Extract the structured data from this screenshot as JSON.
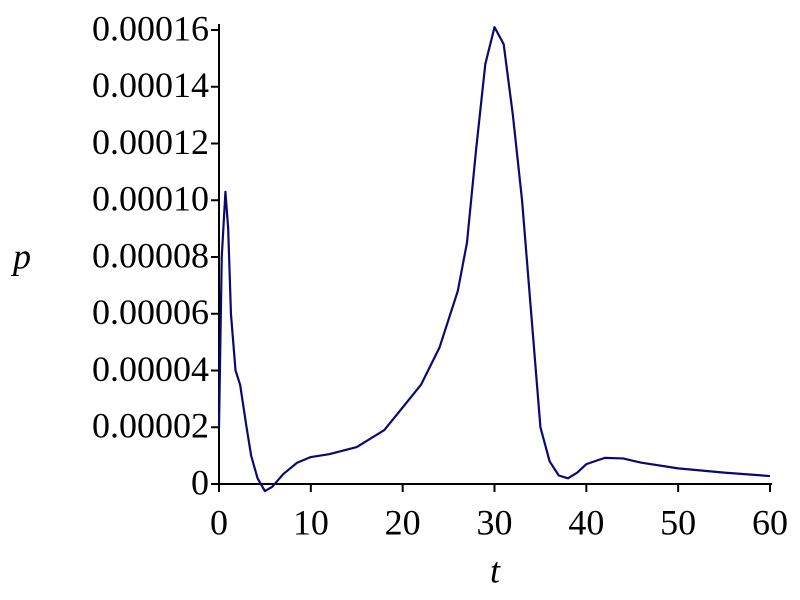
{
  "chart_data": {
    "type": "line",
    "xlabel": "t",
    "ylabel": "p",
    "x": [
      0,
      0.3,
      0.7,
      1.0,
      1.3,
      1.8,
      2.3,
      3,
      3.5,
      4.2,
      5,
      5.8,
      7,
      8.5,
      10,
      12,
      15,
      18,
      20,
      22,
      24,
      26,
      27,
      28,
      29,
      30,
      31,
      32,
      33,
      34,
      35,
      36,
      37,
      38,
      39,
      40,
      42,
      44,
      46,
      50,
      55,
      60
    ],
    "series": [
      {
        "color": "#0a0a6e",
        "values": [
          2e-05,
          8e-05,
          0.000103,
          9e-05,
          6e-05,
          4e-05,
          3.5e-05,
          2e-05,
          1e-05,
          2e-06,
          -2.5e-06,
          -1e-06,
          3.5e-06,
          7.5e-06,
          9.5e-06,
          1.05e-05,
          1.3e-05,
          1.9e-05,
          2.7e-05,
          3.5e-05,
          4.8e-05,
          6.8e-05,
          8.5e-05,
          0.000118,
          0.000148,
          0.000161,
          0.000155,
          0.00013,
          0.0001,
          6e-05,
          2e-05,
          8e-06,
          3e-06,
          2e-06,
          4e-06,
          7e-06,
          9.2e-06,
          9e-06,
          7.5e-06,
          5.5e-06,
          4e-06,
          2.8e-06
        ]
      }
    ],
    "xlim": [
      0,
      60
    ],
    "xticks": [
      0,
      10,
      20,
      30,
      40,
      50,
      60
    ],
    "ylim": [
      0,
      0.00016
    ],
    "yticks": [
      0,
      2e-05,
      4e-05,
      6e-05,
      8e-05,
      {
        "value": 0.0001,
        "label": "0.00010"
      },
      0.00012,
      0.00014,
      0.00016
    ]
  }
}
